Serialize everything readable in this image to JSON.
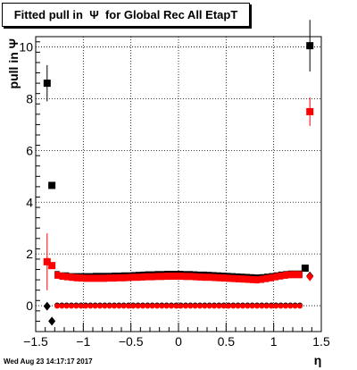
{
  "title": "Fitted pull in  Ψ  for Global Rec All EtapT",
  "timestamp": "Wed Aug 23 14:17:17 2017",
  "chart_data": {
    "type": "scatter",
    "title": "Fitted pull in  Ψ  for Global Rec All EtapT",
    "xlabel": "η",
    "ylabel": "pull in  Ψ",
    "xlim": [
      -1.5,
      1.5
    ],
    "ylim": [
      -1.0,
      10.4
    ],
    "grid": true,
    "x_ticks": [
      {
        "value": -1.5,
        "label": "−1.5"
      },
      {
        "value": -1.0,
        "label": "−1"
      },
      {
        "value": -0.5,
        "label": "−0.5"
      },
      {
        "value": 0.0,
        "label": "0"
      },
      {
        "value": 0.5,
        "label": "0.5"
      },
      {
        "value": 1.0,
        "label": "1"
      },
      {
        "value": 1.5,
        "label": "1.5"
      }
    ],
    "y_ticks": [
      {
        "value": 0,
        "label": "0"
      },
      {
        "value": 2,
        "label": "2"
      },
      {
        "value": 4,
        "label": "4"
      },
      {
        "value": 6,
        "label": "6"
      },
      {
        "value": 8,
        "label": "8"
      },
      {
        "value": 10,
        "label": "10"
      }
    ],
    "series": [
      {
        "role": "black-squares",
        "color": "#000000",
        "marker": "square",
        "points": [
          {
            "x": -1.38,
            "y": 8.6,
            "err": 0.7
          },
          {
            "x": -1.33,
            "y": 4.65,
            "err": 0
          },
          {
            "x": 1.33,
            "y": 1.45,
            "err": 0
          },
          {
            "x": 1.38,
            "y": 10.05,
            "err": 1.0
          }
        ]
      },
      {
        "role": "red-squares",
        "color": "#ff0000",
        "marker": "square",
        "points": [
          {
            "x": -1.38,
            "y": 1.7,
            "err": 1.1
          },
          {
            "x": -1.33,
            "y": 1.55,
            "err": 0
          },
          {
            "x": 1.38,
            "y": 7.5,
            "err": 0.55
          }
        ]
      },
      {
        "role": "black-diamonds",
        "color": "#000000",
        "marker": "diamond",
        "points": [
          {
            "x": -1.38,
            "y": -0.02,
            "err": 0
          },
          {
            "x": -1.33,
            "y": -0.6,
            "err": 0
          },
          {
            "x": 1.38,
            "y": 1.15,
            "err": 0
          }
        ]
      },
      {
        "role": "red-diamonds",
        "color": "#ff0000",
        "marker": "diamond",
        "points": [
          {
            "x": -1.38,
            "y": 1.7,
            "err": 0
          },
          {
            "x": 1.38,
            "y": 1.12,
            "err": 0
          }
        ]
      },
      {
        "role": "black-bars",
        "color": "#000000",
        "marker": "bar",
        "points": [
          {
            "x": -1.275,
            "y": 1.2
          },
          {
            "x": -1.225,
            "y": 1.15
          },
          {
            "x": -1.175,
            "y": 1.15
          },
          {
            "x": -1.125,
            "y": 1.12
          },
          {
            "x": -1.075,
            "y": 1.12
          },
          {
            "x": -1.025,
            "y": 1.12
          },
          {
            "x": -0.975,
            "y": 1.12
          },
          {
            "x": -0.925,
            "y": 1.12
          },
          {
            "x": -0.875,
            "y": 1.13
          },
          {
            "x": -0.825,
            "y": 1.13
          },
          {
            "x": -0.775,
            "y": 1.13
          },
          {
            "x": -0.725,
            "y": 1.13
          },
          {
            "x": -0.675,
            "y": 1.14
          },
          {
            "x": -0.625,
            "y": 1.14
          },
          {
            "x": -0.575,
            "y": 1.15
          },
          {
            "x": -0.525,
            "y": 1.15
          },
          {
            "x": -0.475,
            "y": 1.16
          },
          {
            "x": -0.425,
            "y": 1.17
          },
          {
            "x": -0.375,
            "y": 1.18
          },
          {
            "x": -0.325,
            "y": 1.19
          },
          {
            "x": -0.275,
            "y": 1.19
          },
          {
            "x": -0.225,
            "y": 1.2
          },
          {
            "x": -0.175,
            "y": 1.2
          },
          {
            "x": -0.125,
            "y": 1.21
          },
          {
            "x": -0.075,
            "y": 1.21
          },
          {
            "x": -0.025,
            "y": 1.21
          },
          {
            "x": 0.025,
            "y": 1.21
          },
          {
            "x": 0.075,
            "y": 1.2
          },
          {
            "x": 0.125,
            "y": 1.2
          },
          {
            "x": 0.175,
            "y": 1.19
          },
          {
            "x": 0.225,
            "y": 1.18
          },
          {
            "x": 0.275,
            "y": 1.18
          },
          {
            "x": 0.325,
            "y": 1.17
          },
          {
            "x": 0.375,
            "y": 1.16
          },
          {
            "x": 0.425,
            "y": 1.15
          },
          {
            "x": 0.475,
            "y": 1.14
          },
          {
            "x": 0.525,
            "y": 1.13
          },
          {
            "x": 0.575,
            "y": 1.12
          },
          {
            "x": 0.625,
            "y": 1.11
          },
          {
            "x": 0.675,
            "y": 1.1
          },
          {
            "x": 0.725,
            "y": 1.09
          },
          {
            "x": 0.775,
            "y": 1.08
          },
          {
            "x": 0.825,
            "y": 1.07
          },
          {
            "x": 0.875,
            "y": 1.08
          },
          {
            "x": 0.925,
            "y": 1.1
          },
          {
            "x": 0.975,
            "y": 1.12
          },
          {
            "x": 1.025,
            "y": 1.15
          },
          {
            "x": 1.075,
            "y": 1.18
          },
          {
            "x": 1.125,
            "y": 1.2
          },
          {
            "x": 1.175,
            "y": 1.22
          },
          {
            "x": 1.225,
            "y": 1.22
          },
          {
            "x": 1.275,
            "y": 1.22
          }
        ]
      },
      {
        "role": "red-bars",
        "color": "#ff0000",
        "marker": "bar",
        "points": [
          {
            "x": -1.275,
            "y": 1.18
          },
          {
            "x": -1.225,
            "y": 1.14
          },
          {
            "x": -1.175,
            "y": 1.12
          },
          {
            "x": -1.125,
            "y": 1.1
          },
          {
            "x": -1.075,
            "y": 1.08
          },
          {
            "x": -1.025,
            "y": 1.07
          },
          {
            "x": -0.975,
            "y": 1.06
          },
          {
            "x": -0.925,
            "y": 1.06
          },
          {
            "x": -0.875,
            "y": 1.06
          },
          {
            "x": -0.825,
            "y": 1.06
          },
          {
            "x": -0.775,
            "y": 1.06
          },
          {
            "x": -0.725,
            "y": 1.07
          },
          {
            "x": -0.675,
            "y": 1.07
          },
          {
            "x": -0.625,
            "y": 1.08
          },
          {
            "x": -0.575,
            "y": 1.08
          },
          {
            "x": -0.525,
            "y": 1.09
          },
          {
            "x": -0.475,
            "y": 1.1
          },
          {
            "x": -0.425,
            "y": 1.1
          },
          {
            "x": -0.375,
            "y": 1.11
          },
          {
            "x": -0.325,
            "y": 1.12
          },
          {
            "x": -0.275,
            "y": 1.12
          },
          {
            "x": -0.225,
            "y": 1.13
          },
          {
            "x": -0.175,
            "y": 1.13
          },
          {
            "x": -0.125,
            "y": 1.14
          },
          {
            "x": -0.075,
            "y": 1.14
          },
          {
            "x": -0.025,
            "y": 1.14
          },
          {
            "x": 0.025,
            "y": 1.14
          },
          {
            "x": 0.075,
            "y": 1.13
          },
          {
            "x": 0.125,
            "y": 1.13
          },
          {
            "x": 0.175,
            "y": 1.12
          },
          {
            "x": 0.225,
            "y": 1.11
          },
          {
            "x": 0.275,
            "y": 1.1
          },
          {
            "x": 0.325,
            "y": 1.1
          },
          {
            "x": 0.375,
            "y": 1.09
          },
          {
            "x": 0.425,
            "y": 1.08
          },
          {
            "x": 0.475,
            "y": 1.07
          },
          {
            "x": 0.525,
            "y": 1.06
          },
          {
            "x": 0.575,
            "y": 1.05
          },
          {
            "x": 0.625,
            "y": 1.04
          },
          {
            "x": 0.675,
            "y": 1.03
          },
          {
            "x": 0.725,
            "y": 1.02
          },
          {
            "x": 0.775,
            "y": 1.01
          },
          {
            "x": 0.825,
            "y": 1.0
          },
          {
            "x": 0.875,
            "y": 1.02
          },
          {
            "x": 0.925,
            "y": 1.05
          },
          {
            "x": 0.975,
            "y": 1.08
          },
          {
            "x": 1.025,
            "y": 1.12
          },
          {
            "x": 1.075,
            "y": 1.15
          },
          {
            "x": 1.125,
            "y": 1.18
          },
          {
            "x": 1.175,
            "y": 1.2
          },
          {
            "x": 1.225,
            "y": 1.2
          },
          {
            "x": 1.275,
            "y": 1.2
          }
        ]
      },
      {
        "role": "black-dots-near-zero",
        "color": "#000000",
        "marker": "dot",
        "points": [
          {
            "x": -1.275,
            "y": 0.02
          },
          {
            "x": -1.225,
            "y": 0.02
          },
          {
            "x": -1.175,
            "y": 0.02
          },
          {
            "x": -1.125,
            "y": 0.02
          },
          {
            "x": -1.075,
            "y": 0.02
          },
          {
            "x": -1.025,
            "y": 0.02
          },
          {
            "x": -0.975,
            "y": 0.02
          },
          {
            "x": -0.925,
            "y": 0.02
          },
          {
            "x": -0.875,
            "y": 0.02
          },
          {
            "x": -0.825,
            "y": 0.02
          },
          {
            "x": -0.775,
            "y": 0.02
          },
          {
            "x": -0.725,
            "y": 0.02
          },
          {
            "x": -0.675,
            "y": 0.02
          },
          {
            "x": -0.625,
            "y": 0.02
          },
          {
            "x": -0.575,
            "y": 0.02
          },
          {
            "x": -0.525,
            "y": 0.02
          },
          {
            "x": -0.475,
            "y": 0.02
          },
          {
            "x": -0.425,
            "y": 0.02
          },
          {
            "x": -0.375,
            "y": 0.02
          },
          {
            "x": -0.325,
            "y": 0.02
          },
          {
            "x": -0.275,
            "y": 0.02
          },
          {
            "x": -0.225,
            "y": 0.02
          },
          {
            "x": -0.175,
            "y": 0.02
          },
          {
            "x": -0.125,
            "y": 0.02
          },
          {
            "x": -0.075,
            "y": 0.02
          },
          {
            "x": -0.025,
            "y": 0.02
          },
          {
            "x": 0.025,
            "y": 0.02
          },
          {
            "x": 0.075,
            "y": 0.02
          },
          {
            "x": 0.125,
            "y": 0.02
          },
          {
            "x": 0.175,
            "y": 0.02
          },
          {
            "x": 0.225,
            "y": 0.02
          },
          {
            "x": 0.275,
            "y": 0.02
          },
          {
            "x": 0.325,
            "y": 0.02
          },
          {
            "x": 0.375,
            "y": 0.02
          },
          {
            "x": 0.425,
            "y": 0.02
          },
          {
            "x": 0.475,
            "y": 0.02
          },
          {
            "x": 0.525,
            "y": 0.02
          },
          {
            "x": 0.575,
            "y": 0.02
          },
          {
            "x": 0.625,
            "y": 0.02
          },
          {
            "x": 0.675,
            "y": 0.02
          },
          {
            "x": 0.725,
            "y": 0.02
          },
          {
            "x": 0.775,
            "y": 0.02
          },
          {
            "x": 0.825,
            "y": 0.02
          },
          {
            "x": 0.875,
            "y": 0.02
          },
          {
            "x": 0.925,
            "y": 0.02
          },
          {
            "x": 0.975,
            "y": 0.02
          },
          {
            "x": 1.025,
            "y": 0.02
          },
          {
            "x": 1.075,
            "y": 0.02
          },
          {
            "x": 1.125,
            "y": 0.02
          },
          {
            "x": 1.175,
            "y": 0.02
          },
          {
            "x": 1.225,
            "y": 0.02
          },
          {
            "x": 1.275,
            "y": 0.02
          }
        ]
      },
      {
        "role": "red-dots-near-zero",
        "color": "#ff0000",
        "marker": "dot",
        "points": [
          {
            "x": -1.275,
            "y": -0.01
          },
          {
            "x": -1.225,
            "y": -0.01
          },
          {
            "x": -1.175,
            "y": -0.01
          },
          {
            "x": -1.125,
            "y": -0.01
          },
          {
            "x": -1.075,
            "y": -0.01
          },
          {
            "x": -1.025,
            "y": -0.01
          },
          {
            "x": -0.975,
            "y": -0.01
          },
          {
            "x": -0.925,
            "y": -0.01
          },
          {
            "x": -0.875,
            "y": -0.01
          },
          {
            "x": -0.825,
            "y": -0.01
          },
          {
            "x": -0.775,
            "y": -0.01
          },
          {
            "x": -0.725,
            "y": -0.01
          },
          {
            "x": -0.675,
            "y": -0.01
          },
          {
            "x": -0.625,
            "y": -0.01
          },
          {
            "x": -0.575,
            "y": -0.01
          },
          {
            "x": -0.525,
            "y": -0.01
          },
          {
            "x": -0.475,
            "y": -0.01
          },
          {
            "x": -0.425,
            "y": -0.01
          },
          {
            "x": -0.375,
            "y": -0.01
          },
          {
            "x": -0.325,
            "y": -0.01
          },
          {
            "x": -0.275,
            "y": -0.01
          },
          {
            "x": -0.225,
            "y": -0.01
          },
          {
            "x": -0.175,
            "y": -0.01
          },
          {
            "x": -0.125,
            "y": -0.01
          },
          {
            "x": -0.075,
            "y": -0.01
          },
          {
            "x": -0.025,
            "y": -0.01
          },
          {
            "x": 0.025,
            "y": -0.01
          },
          {
            "x": 0.075,
            "y": -0.01
          },
          {
            "x": 0.125,
            "y": -0.01
          },
          {
            "x": 0.175,
            "y": -0.01
          },
          {
            "x": 0.225,
            "y": -0.01
          },
          {
            "x": 0.275,
            "y": -0.01
          },
          {
            "x": 0.325,
            "y": -0.01
          },
          {
            "x": 0.375,
            "y": -0.01
          },
          {
            "x": 0.425,
            "y": -0.01
          },
          {
            "x": 0.475,
            "y": -0.01
          },
          {
            "x": 0.525,
            "y": -0.01
          },
          {
            "x": 0.575,
            "y": -0.01
          },
          {
            "x": 0.625,
            "y": -0.01
          },
          {
            "x": 0.675,
            "y": -0.01
          },
          {
            "x": 0.725,
            "y": -0.01
          },
          {
            "x": 0.775,
            "y": -0.01
          },
          {
            "x": 0.825,
            "y": -0.01
          },
          {
            "x": 0.875,
            "y": -0.01
          },
          {
            "x": 0.925,
            "y": -0.01
          },
          {
            "x": 0.975,
            "y": -0.01
          },
          {
            "x": 1.025,
            "y": -0.01
          },
          {
            "x": 1.075,
            "y": -0.01
          },
          {
            "x": 1.125,
            "y": -0.01
          },
          {
            "x": 1.175,
            "y": -0.01
          },
          {
            "x": 1.225,
            "y": -0.01
          },
          {
            "x": 1.275,
            "y": -0.01
          }
        ]
      }
    ]
  }
}
